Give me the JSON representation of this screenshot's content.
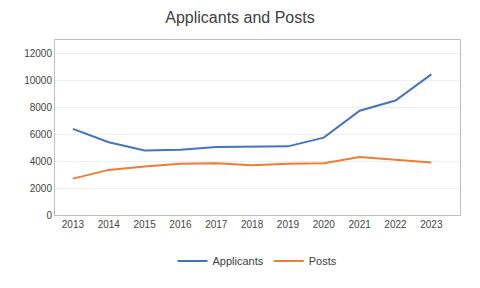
{
  "chart_data": {
    "type": "line",
    "title": "Applicants and Posts",
    "x": [
      2013,
      2014,
      2015,
      2016,
      2017,
      2018,
      2019,
      2020,
      2021,
      2022,
      2023
    ],
    "series": [
      {
        "name": "Applicants",
        "color": "#4472C4",
        "values": [
          6400,
          5400,
          4800,
          4850,
          5050,
          5050,
          5100,
          5750,
          7750,
          8500,
          10450
        ]
      },
      {
        "name": "Posts",
        "color": "#ED7D31",
        "values": [
          2700,
          3350,
          3600,
          3800,
          3850,
          3700,
          3800,
          3850,
          4300,
          4100,
          3900
        ]
      }
    ],
    "xlim": [
      2012.5,
      2023.8
    ],
    "xticks": [
      2013,
      2014,
      2015,
      2016,
      2017,
      2018,
      2019,
      2020,
      2021,
      2022,
      2023
    ],
    "ylim": [
      0,
      13000
    ],
    "yticks": [
      0,
      2000,
      4000,
      6000,
      8000,
      10000,
      12000
    ],
    "grid": true,
    "legend": "bottom"
  }
}
